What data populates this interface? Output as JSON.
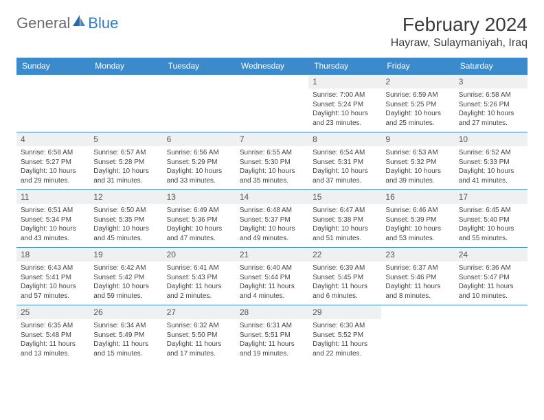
{
  "logo": {
    "text1": "General",
    "text2": "Blue"
  },
  "title": "February 2024",
  "location": "Hayraw, Sulaymaniyah, Iraq",
  "colors": {
    "headerBg": "#3b8acb",
    "headerText": "#ffffff",
    "dayBg": "#eef0f1",
    "border": "#3b8acb"
  },
  "dayHeaders": [
    "Sunday",
    "Monday",
    "Tuesday",
    "Wednesday",
    "Thursday",
    "Friday",
    "Saturday"
  ],
  "weeks": [
    [
      null,
      null,
      null,
      null,
      {
        "d": "1",
        "sr": "Sunrise: 7:00 AM",
        "ss": "Sunset: 5:24 PM",
        "dl1": "Daylight: 10 hours",
        "dl2": "and 23 minutes."
      },
      {
        "d": "2",
        "sr": "Sunrise: 6:59 AM",
        "ss": "Sunset: 5:25 PM",
        "dl1": "Daylight: 10 hours",
        "dl2": "and 25 minutes."
      },
      {
        "d": "3",
        "sr": "Sunrise: 6:58 AM",
        "ss": "Sunset: 5:26 PM",
        "dl1": "Daylight: 10 hours",
        "dl2": "and 27 minutes."
      }
    ],
    [
      {
        "d": "4",
        "sr": "Sunrise: 6:58 AM",
        "ss": "Sunset: 5:27 PM",
        "dl1": "Daylight: 10 hours",
        "dl2": "and 29 minutes."
      },
      {
        "d": "5",
        "sr": "Sunrise: 6:57 AM",
        "ss": "Sunset: 5:28 PM",
        "dl1": "Daylight: 10 hours",
        "dl2": "and 31 minutes."
      },
      {
        "d": "6",
        "sr": "Sunrise: 6:56 AM",
        "ss": "Sunset: 5:29 PM",
        "dl1": "Daylight: 10 hours",
        "dl2": "and 33 minutes."
      },
      {
        "d": "7",
        "sr": "Sunrise: 6:55 AM",
        "ss": "Sunset: 5:30 PM",
        "dl1": "Daylight: 10 hours",
        "dl2": "and 35 minutes."
      },
      {
        "d": "8",
        "sr": "Sunrise: 6:54 AM",
        "ss": "Sunset: 5:31 PM",
        "dl1": "Daylight: 10 hours",
        "dl2": "and 37 minutes."
      },
      {
        "d": "9",
        "sr": "Sunrise: 6:53 AM",
        "ss": "Sunset: 5:32 PM",
        "dl1": "Daylight: 10 hours",
        "dl2": "and 39 minutes."
      },
      {
        "d": "10",
        "sr": "Sunrise: 6:52 AM",
        "ss": "Sunset: 5:33 PM",
        "dl1": "Daylight: 10 hours",
        "dl2": "and 41 minutes."
      }
    ],
    [
      {
        "d": "11",
        "sr": "Sunrise: 6:51 AM",
        "ss": "Sunset: 5:34 PM",
        "dl1": "Daylight: 10 hours",
        "dl2": "and 43 minutes."
      },
      {
        "d": "12",
        "sr": "Sunrise: 6:50 AM",
        "ss": "Sunset: 5:35 PM",
        "dl1": "Daylight: 10 hours",
        "dl2": "and 45 minutes."
      },
      {
        "d": "13",
        "sr": "Sunrise: 6:49 AM",
        "ss": "Sunset: 5:36 PM",
        "dl1": "Daylight: 10 hours",
        "dl2": "and 47 minutes."
      },
      {
        "d": "14",
        "sr": "Sunrise: 6:48 AM",
        "ss": "Sunset: 5:37 PM",
        "dl1": "Daylight: 10 hours",
        "dl2": "and 49 minutes."
      },
      {
        "d": "15",
        "sr": "Sunrise: 6:47 AM",
        "ss": "Sunset: 5:38 PM",
        "dl1": "Daylight: 10 hours",
        "dl2": "and 51 minutes."
      },
      {
        "d": "16",
        "sr": "Sunrise: 6:46 AM",
        "ss": "Sunset: 5:39 PM",
        "dl1": "Daylight: 10 hours",
        "dl2": "and 53 minutes."
      },
      {
        "d": "17",
        "sr": "Sunrise: 6:45 AM",
        "ss": "Sunset: 5:40 PM",
        "dl1": "Daylight: 10 hours",
        "dl2": "and 55 minutes."
      }
    ],
    [
      {
        "d": "18",
        "sr": "Sunrise: 6:43 AM",
        "ss": "Sunset: 5:41 PM",
        "dl1": "Daylight: 10 hours",
        "dl2": "and 57 minutes."
      },
      {
        "d": "19",
        "sr": "Sunrise: 6:42 AM",
        "ss": "Sunset: 5:42 PM",
        "dl1": "Daylight: 10 hours",
        "dl2": "and 59 minutes."
      },
      {
        "d": "20",
        "sr": "Sunrise: 6:41 AM",
        "ss": "Sunset: 5:43 PM",
        "dl1": "Daylight: 11 hours",
        "dl2": "and 2 minutes."
      },
      {
        "d": "21",
        "sr": "Sunrise: 6:40 AM",
        "ss": "Sunset: 5:44 PM",
        "dl1": "Daylight: 11 hours",
        "dl2": "and 4 minutes."
      },
      {
        "d": "22",
        "sr": "Sunrise: 6:39 AM",
        "ss": "Sunset: 5:45 PM",
        "dl1": "Daylight: 11 hours",
        "dl2": "and 6 minutes."
      },
      {
        "d": "23",
        "sr": "Sunrise: 6:37 AM",
        "ss": "Sunset: 5:46 PM",
        "dl1": "Daylight: 11 hours",
        "dl2": "and 8 minutes."
      },
      {
        "d": "24",
        "sr": "Sunrise: 6:36 AM",
        "ss": "Sunset: 5:47 PM",
        "dl1": "Daylight: 11 hours",
        "dl2": "and 10 minutes."
      }
    ],
    [
      {
        "d": "25",
        "sr": "Sunrise: 6:35 AM",
        "ss": "Sunset: 5:48 PM",
        "dl1": "Daylight: 11 hours",
        "dl2": "and 13 minutes."
      },
      {
        "d": "26",
        "sr": "Sunrise: 6:34 AM",
        "ss": "Sunset: 5:49 PM",
        "dl1": "Daylight: 11 hours",
        "dl2": "and 15 minutes."
      },
      {
        "d": "27",
        "sr": "Sunrise: 6:32 AM",
        "ss": "Sunset: 5:50 PM",
        "dl1": "Daylight: 11 hours",
        "dl2": "and 17 minutes."
      },
      {
        "d": "28",
        "sr": "Sunrise: 6:31 AM",
        "ss": "Sunset: 5:51 PM",
        "dl1": "Daylight: 11 hours",
        "dl2": "and 19 minutes."
      },
      {
        "d": "29",
        "sr": "Sunrise: 6:30 AM",
        "ss": "Sunset: 5:52 PM",
        "dl1": "Daylight: 11 hours",
        "dl2": "and 22 minutes."
      },
      null,
      null
    ]
  ]
}
